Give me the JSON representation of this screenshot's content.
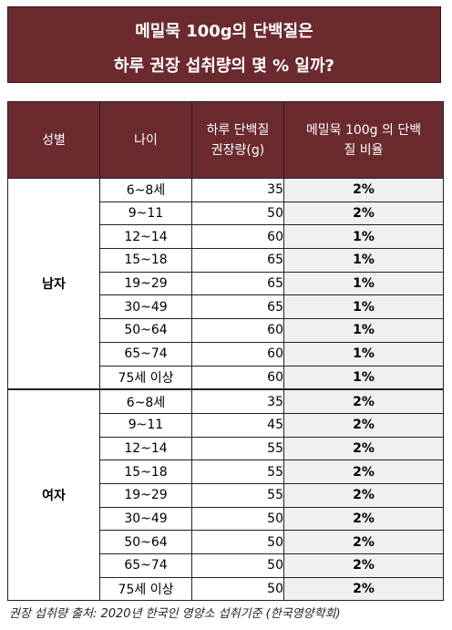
{
  "title": {
    "line1": "메밀묵 100g의 단백질은",
    "line2": "하루 권장 섭취량의 몇 % 일까?"
  },
  "table": {
    "headers": {
      "sex": "성별",
      "age": "나이",
      "rec_line1": "하루 단백질",
      "rec_line2": "권장량(g)",
      "ratio_line1": "메밀묵 100g 의 단백",
      "ratio_line2": "질 비율"
    },
    "groups": [
      {
        "label": "남자",
        "rows": [
          {
            "age": "6~8세",
            "amount": "35",
            "percent": "2%"
          },
          {
            "age": "9~11",
            "amount": "50",
            "percent": "2%"
          },
          {
            "age": "12~14",
            "amount": "60",
            "percent": "1%"
          },
          {
            "age": "15~18",
            "amount": "65",
            "percent": "1%"
          },
          {
            "age": "19~29",
            "amount": "65",
            "percent": "1%"
          },
          {
            "age": "30~49",
            "amount": "65",
            "percent": "1%"
          },
          {
            "age": "50~64",
            "amount": "60",
            "percent": "1%"
          },
          {
            "age": "65~74",
            "amount": "60",
            "percent": "1%"
          },
          {
            "age": "75세 이상",
            "amount": "60",
            "percent": "1%"
          }
        ]
      },
      {
        "label": "여자",
        "rows": [
          {
            "age": "6~8세",
            "amount": "35",
            "percent": "2%"
          },
          {
            "age": "9~11",
            "amount": "45",
            "percent": "2%"
          },
          {
            "age": "12~14",
            "amount": "55",
            "percent": "2%"
          },
          {
            "age": "15~18",
            "amount": "55",
            "percent": "2%"
          },
          {
            "age": "19~29",
            "amount": "55",
            "percent": "2%"
          },
          {
            "age": "30~49",
            "amount": "50",
            "percent": "2%"
          },
          {
            "age": "50~64",
            "amount": "50",
            "percent": "2%"
          },
          {
            "age": "65~74",
            "amount": "50",
            "percent": "2%"
          },
          {
            "age": "75세 이상",
            "amount": "50",
            "percent": "2%"
          }
        ]
      }
    ]
  },
  "footer": "권장 섭취량 출처: 2020년 한국인 영양소 섭취기준 (한국영양학회)",
  "colors": {
    "header_bg": "#6b2a2e",
    "percent_cell_bg": "#f0f0f0"
  }
}
